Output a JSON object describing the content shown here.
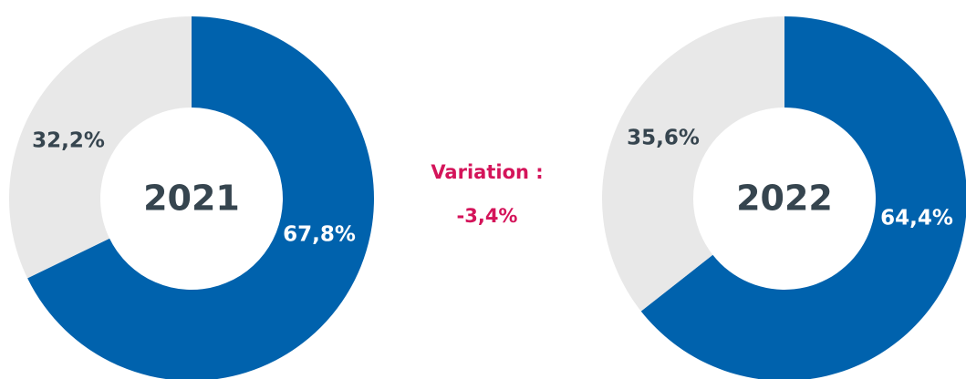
{
  "chart_data": [
    {
      "type": "pie",
      "title": "2021",
      "values": [
        67.8,
        32.2
      ],
      "value_labels": [
        "67,8%",
        "32,2%"
      ],
      "colors": [
        "#0062ad",
        "#e8e8e8"
      ],
      "donut": true
    },
    {
      "type": "pie",
      "title": "2022",
      "values": [
        64.4,
        35.6
      ],
      "value_labels": [
        "64,4%",
        "35,6%"
      ],
      "colors": [
        "#0062ad",
        "#e8e8e8"
      ],
      "donut": true
    }
  ],
  "annotation": {
    "label": "Variation :",
    "value": "-3,4%"
  }
}
